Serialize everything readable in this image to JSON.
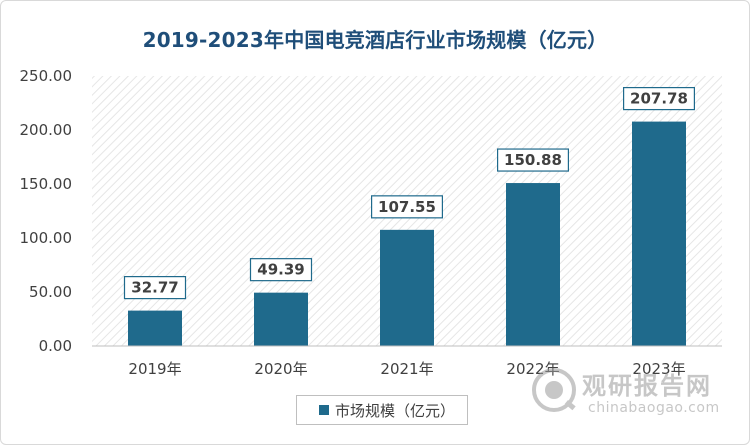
{
  "chart_data": {
    "type": "bar",
    "title": "2019-2023年中国电竞酒店行业市场规模（亿元）",
    "categories": [
      "2019年",
      "2020年",
      "2021年",
      "2022年",
      "2023年"
    ],
    "series": [
      {
        "name": "市场规模（亿元）",
        "values": [
          32.77,
          49.39,
          107.55,
          150.88,
          207.78
        ]
      }
    ],
    "data_labels": [
      "32.77",
      "49.39",
      "107.55",
      "150.88",
      "207.78"
    ],
    "y_ticks": [
      "0.00",
      "50.00",
      "100.00",
      "150.00",
      "200.00",
      "250.00"
    ],
    "ylim": [
      0,
      250
    ],
    "grid": false,
    "plot_background": "diagonal hatch",
    "legend_position": "bottom",
    "colors": {
      "bar": "#1f6a8c",
      "title": "#1f4e79",
      "label_border": "#1f6a8c"
    }
  },
  "watermark": {
    "cn": "观研报告网",
    "en": "chinabaogao.com"
  }
}
